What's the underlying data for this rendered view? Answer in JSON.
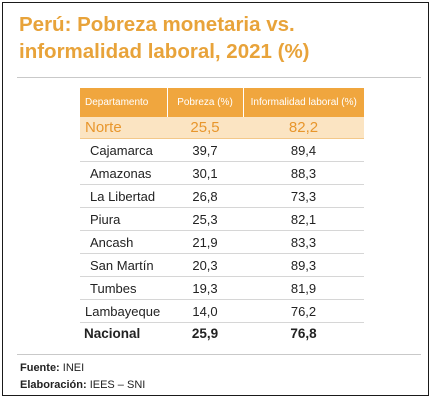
{
  "title": "Perú: Pobreza monetaria vs. informalidad laboral, 2021 (%)",
  "table": {
    "headers": [
      "Departamento",
      "Pobreza (%)",
      "Informalidad laboral (%)"
    ],
    "region": {
      "name": "Norte",
      "pobreza": "25,5",
      "informalidad": "82,2"
    },
    "rows": [
      {
        "name": "Cajamarca",
        "pobreza": "39,7",
        "informalidad": "89,4"
      },
      {
        "name": "Amazonas",
        "pobreza": "30,1",
        "informalidad": "88,3"
      },
      {
        "name": "La Libertad",
        "pobreza": "26,8",
        "informalidad": "73,3"
      },
      {
        "name": "Piura",
        "pobreza": "25,3",
        "informalidad": "82,1"
      },
      {
        "name": "Ancash",
        "pobreza": "21,9",
        "informalidad": "83,3"
      },
      {
        "name": "San Martín",
        "pobreza": "20,3",
        "informalidad": "89,3"
      },
      {
        "name": "Tumbes",
        "pobreza": "19,3",
        "informalidad": "81,9"
      },
      {
        "name": "Lambayeque",
        "pobreza": "14,0",
        "informalidad": "76,2"
      }
    ],
    "total": {
      "name": "Nacional",
      "pobreza": "25,9",
      "informalidad": "76,8"
    }
  },
  "notes": {
    "source_label": "Fuente:",
    "source_value": "INEI",
    "prepared_label": "Elaboración:",
    "prepared_value": "IEES – SNI"
  },
  "colors": {
    "title": "#e8a33a",
    "header_bg": "#f0a63e",
    "region_bg": "#fbe4c2",
    "region_text": "#e8962c"
  }
}
